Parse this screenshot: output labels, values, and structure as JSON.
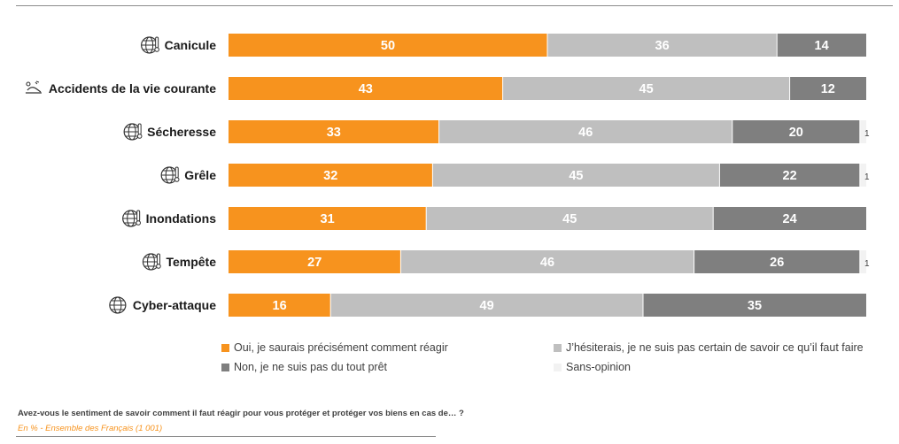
{
  "chart_data": {
    "type": "bar",
    "orientation": "horizontal",
    "stacked": true,
    "xlim": [
      0,
      100
    ],
    "categories": [
      {
        "label": "Canicule",
        "icon": "globe-thermometer-icon"
      },
      {
        "label": "Accidents de la vie courante",
        "icon": "accident-icon"
      },
      {
        "label": "Sécheresse",
        "icon": "globe-thermometer-icon"
      },
      {
        "label": "Grêle",
        "icon": "globe-thermometer-icon"
      },
      {
        "label": "Inondations",
        "icon": "globe-thermometer-icon"
      },
      {
        "label": "Tempête",
        "icon": "globe-thermometer-icon"
      },
      {
        "label": "Cyber-attaque",
        "icon": "globe-network-icon"
      }
    ],
    "series": [
      {
        "name": "Oui, je saurais précisément comment réagir",
        "color": "#f7931e",
        "values": [
          50,
          43,
          33,
          32,
          31,
          27,
          16
        ]
      },
      {
        "name": "J’hésiterais, je ne suis pas certain de savoir ce qu’il faut faire",
        "color": "#bfbfbf",
        "values": [
          36,
          45,
          46,
          45,
          45,
          46,
          49
        ]
      },
      {
        "name": "Non, je ne suis pas du tout prêt",
        "color": "#7f7f7f",
        "values": [
          14,
          12,
          20,
          22,
          24,
          26,
          35
        ]
      },
      {
        "name": "Sans-opinion",
        "color": "#f2f2f2",
        "values": [
          0,
          0,
          1,
          1,
          0,
          1,
          0
        ]
      }
    ],
    "legend_position": "bottom",
    "grid": false
  },
  "footer": {
    "question": "Avez-vous le sentiment de savoir comment il faut réagir pour vous protéger et protéger vos biens en cas de… ?",
    "base": "En % - Ensemble des Français (1 001)"
  }
}
